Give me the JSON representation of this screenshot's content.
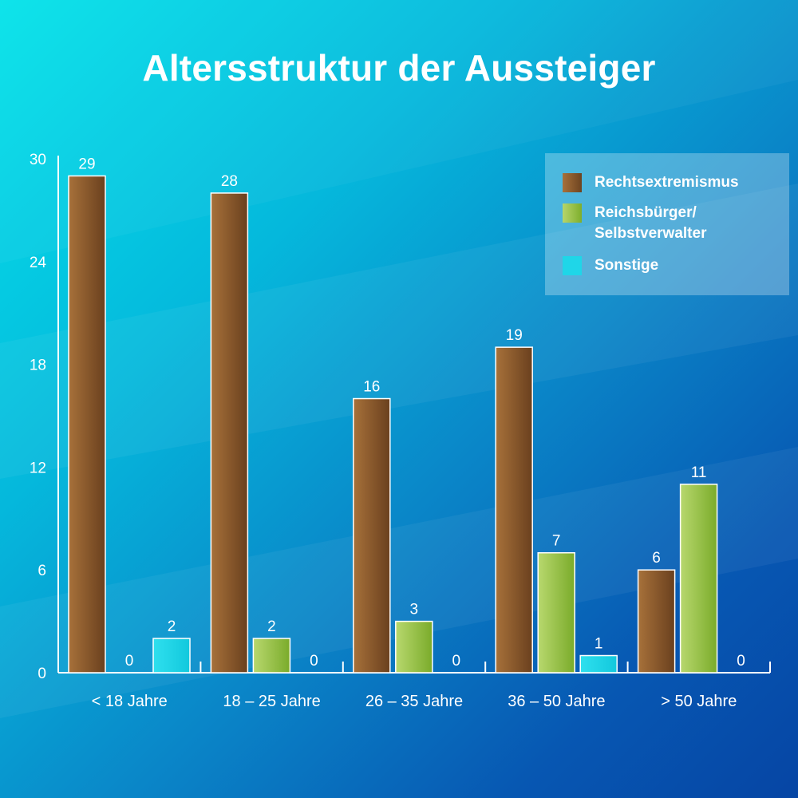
{
  "chart_data": {
    "type": "bar",
    "title": "Altersstruktur der Aussteiger",
    "categories": [
      "< 18 Jahre",
      "18 – 25 Jahre",
      "26 – 35 Jahre",
      "36 – 50 Jahre",
      "> 50 Jahre"
    ],
    "series": [
      {
        "name": "Rechtsextremismus",
        "values": [
          29,
          28,
          16,
          19,
          6
        ],
        "color": "#8a5a2b"
      },
      {
        "name": "Reichsbürger/\nSelbstverwalter",
        "values": [
          0,
          2,
          3,
          7,
          11
        ],
        "color": "#8fbf3a"
      },
      {
        "name": "Sonstige",
        "values": [
          2,
          0,
          0,
          1,
          0
        ],
        "color": "#1fd6e8"
      }
    ],
    "yticks": [
      "0",
      "6",
      "12",
      "18",
      "24",
      "30"
    ],
    "ylim": [
      0,
      30
    ],
    "grid": false,
    "legend_position": "top-right",
    "data_labels": true
  }
}
